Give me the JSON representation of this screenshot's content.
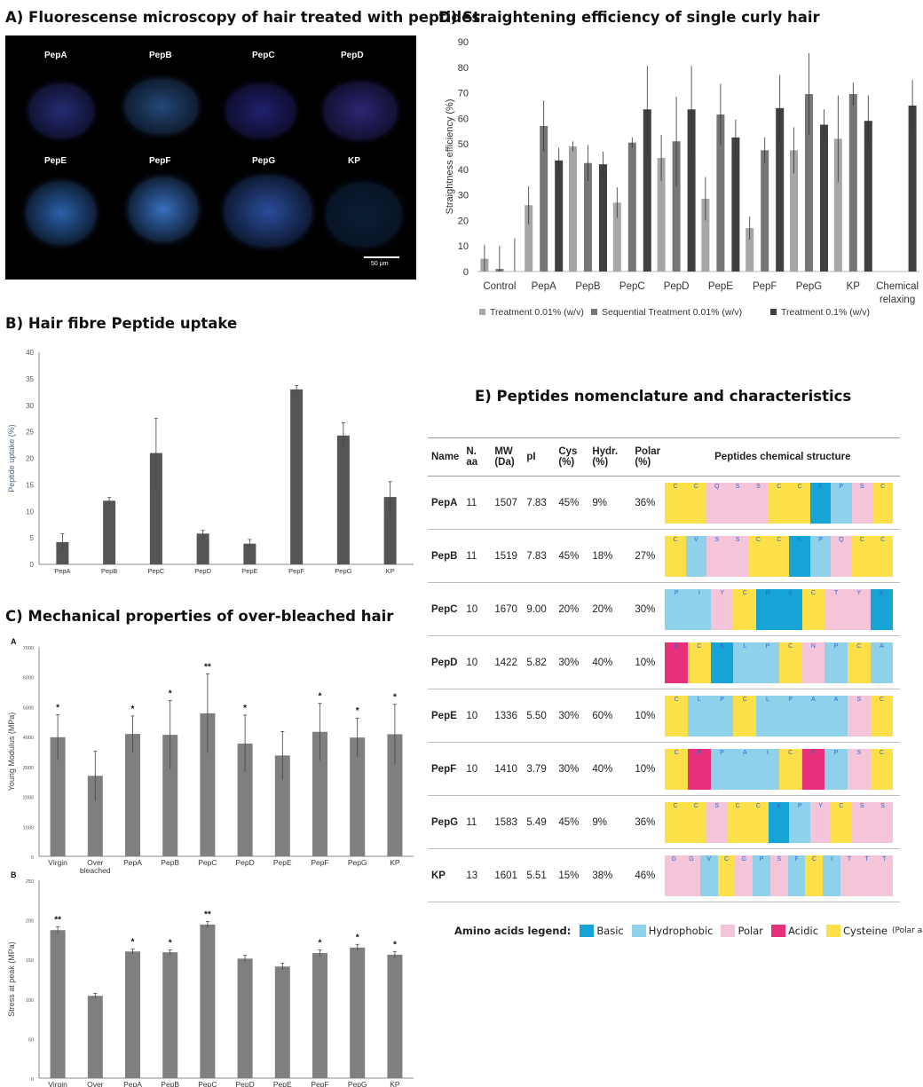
{
  "panelA": {
    "title": "A) Fluorescense microscopy of hair treated with peptides",
    "labels": [
      "PepA",
      "PepB",
      "PepC",
      "PepD",
      "PepE",
      "PepF",
      "PepG",
      "KP"
    ],
    "scale": "50 μm"
  },
  "panelB": {
    "title": "B) Hair fibre Peptide uptake",
    "chart_data": {
      "type": "bar",
      "categories": [
        "PepA",
        "PepB",
        "PepC",
        "PepD",
        "PepE",
        "PepF",
        "PepG",
        "KP"
      ],
      "values": [
        4.2,
        12.0,
        21.0,
        5.8,
        3.9,
        33.0,
        24.3,
        12.7
      ],
      "errors": [
        1.6,
        0.6,
        6.5,
        0.6,
        0.8,
        0.7,
        2.4,
        2.9
      ],
      "ylabel": "Peptide uptake (%)",
      "ylim": [
        0,
        40
      ],
      "yticks": [
        0,
        5,
        10,
        15,
        20,
        25,
        30,
        35,
        40
      ],
      "color": "#555555"
    }
  },
  "panelC": {
    "title": "C) Mechanical properties of over-bleached hair",
    "chart_data": [
      {
        "type": "bar",
        "letter": "A",
        "categories": [
          "Virgin",
          "Over bleached",
          "PepA",
          "PepB",
          "PepC",
          "PepD",
          "PepE",
          "PepF",
          "PepG",
          "KP"
        ],
        "values": [
          3980,
          2690,
          4090,
          4060,
          4780,
          3770,
          3370,
          4160,
          3970,
          4080
        ],
        "errors": [
          750,
          820,
          600,
          1150,
          1320,
          950,
          800,
          950,
          650,
          1000
        ],
        "stars": [
          "*",
          "",
          "*",
          "*",
          "**",
          "*",
          "",
          "*",
          "*",
          "*"
        ],
        "ylabel": "Young Modulus (MPa)",
        "ylim": [
          0,
          7000
        ],
        "yticks": [
          0,
          1000,
          2000,
          3000,
          4000,
          5000,
          6000,
          7000
        ],
        "color": "#7f7f7f"
      },
      {
        "type": "bar",
        "letter": "B",
        "categories": [
          "Virgin",
          "Over bleached",
          "PepA",
          "PepB",
          "PepC",
          "PepD",
          "PepE",
          "PepF",
          "PepG",
          "KP"
        ],
        "values": [
          187,
          104,
          160,
          159,
          194,
          151,
          141,
          158,
          165,
          156
        ],
        "errors": [
          4,
          3,
          3,
          3,
          4,
          4,
          4,
          4,
          4,
          4
        ],
        "stars": [
          "**",
          "",
          "*",
          "*",
          "**",
          "",
          "",
          "*",
          "*",
          "*"
        ],
        "ylabel": "Stress at peak (MPa)",
        "ylim": [
          0,
          250
        ],
        "yticks": [
          0,
          50,
          100,
          150,
          200,
          250
        ],
        "color": "#7f7f7f"
      }
    ]
  },
  "panelD": {
    "title": "D) Straightening efficiency of single curly hair",
    "chart_data": {
      "type": "bar",
      "categories": [
        "Control",
        "PepA",
        "PepB",
        "PepC",
        "PepD",
        "PepE",
        "PepF",
        "PepG",
        "KP",
        "Chemical relaxing"
      ],
      "series": [
        {
          "name": "Treatment 0.01% (w/v)",
          "color": "#a6a6a6",
          "values": [
            5,
            26,
            49,
            27,
            44.5,
            28.5,
            17,
            47.5,
            52,
            null
          ],
          "errors": [
            5.5,
            7.5,
            2,
            6,
            9,
            8.5,
            4.5,
            9,
            17,
            null
          ]
        },
        {
          "name": "Sequential Treatment 0.01% (w/v)",
          "color": "#767676",
          "values": [
            1,
            57,
            42.5,
            50.5,
            51,
            61.5,
            47.5,
            69.5,
            69.5,
            null
          ],
          "errors": [
            9,
            10,
            7,
            2,
            17.5,
            12,
            5,
            16,
            4.5,
            null
          ]
        },
        {
          "name": "Treatment 0.1% (w/v)",
          "color": "#404040",
          "values": [
            0,
            43.5,
            42,
            63.5,
            63.5,
            52.5,
            64,
            57.5,
            59,
            65
          ],
          "errors": [
            13,
            5,
            5,
            17,
            17,
            7,
            13,
            6,
            10,
            10
          ]
        }
      ],
      "ylabel": "Straightness efficiency (%)",
      "ylim": [
        0,
        90
      ],
      "yticks": [
        0,
        10,
        20,
        30,
        40,
        50,
        60,
        70,
        80,
        90
      ]
    }
  },
  "panelE": {
    "title": "E) Peptides nomenclature and characteristics",
    "headers": {
      "name": "Name",
      "naa": "N. aa",
      "mw": "MW (Da)",
      "pi": "pI",
      "cys": "Cys (%)",
      "hydr": "Hydr. (%)",
      "polar": "Polar (%)",
      "struct": "Peptides chemical structure"
    },
    "rows": [
      {
        "name": "PepA",
        "naa": "11",
        "mw": "1507",
        "pi": "7.83",
        "cys": "45%",
        "hydr": "9%",
        "polar": "36%",
        "seq": [
          "C",
          "C",
          "Q",
          "S",
          "S",
          "C",
          "C",
          "K",
          "P",
          "S",
          "C"
        ]
      },
      {
        "name": "PepB",
        "naa": "11",
        "mw": "1519",
        "pi": "7.83",
        "cys": "45%",
        "hydr": "18%",
        "polar": "27%",
        "seq": [
          "C",
          "V",
          "S",
          "S",
          "C",
          "C",
          "K",
          "P",
          "Q",
          "C",
          "C"
        ]
      },
      {
        "name": "PepC",
        "naa": "10",
        "mw": "1670",
        "pi": "9.00",
        "cys": "20%",
        "hydr": "20%",
        "polar": "30%",
        "seq": [
          "P",
          "I",
          "Y",
          "C",
          "R",
          "K",
          "C",
          "T",
          "Y",
          "K"
        ]
      },
      {
        "name": "PepD",
        "naa": "10",
        "mw": "1422",
        "pi": "5.82",
        "cys": "30%",
        "hydr": "40%",
        "polar": "10%",
        "seq": [
          "D",
          "C",
          "K",
          "L",
          "P",
          "C",
          "N",
          "P",
          "C",
          "A"
        ]
      },
      {
        "name": "PepE",
        "naa": "10",
        "mw": "1336",
        "pi": "5.50",
        "cys": "30%",
        "hydr": "60%",
        "polar": "10%",
        "seq": [
          "C",
          "L",
          "P",
          "C",
          "L",
          "P",
          "A",
          "A",
          "S",
          "C"
        ]
      },
      {
        "name": "PepF",
        "naa": "10",
        "mw": "1410",
        "pi": "3.79",
        "cys": "30%",
        "hydr": "40%",
        "polar": "10%",
        "seq": [
          "C",
          "E",
          "P",
          "A",
          "I",
          "C",
          "E",
          "P",
          "S",
          "C"
        ]
      },
      {
        "name": "PepG",
        "naa": "11",
        "mw": "1583",
        "pi": "5.49",
        "cys": "45%",
        "hydr": "9%",
        "polar": "36%",
        "seq": [
          "C",
          "C",
          "S",
          "C",
          "C",
          "K",
          "P",
          "Y",
          "C",
          "S",
          "S"
        ]
      },
      {
        "name": "KP",
        "naa": "13",
        "mw": "1601",
        "pi": "5.51",
        "cys": "15%",
        "hydr": "38%",
        "polar": "46%",
        "seq": [
          "G",
          "G",
          "V",
          "C",
          "G",
          "P",
          "S",
          "F",
          "C",
          "I",
          "T",
          "T",
          "T"
        ]
      }
    ],
    "legend": {
      "title": "Amino acids legend:",
      "items": [
        {
          "label": "Basic",
          "color": "#16a4d6"
        },
        {
          "label": "Hydrophobic",
          "color": "#8fd0ea"
        },
        {
          "label": "Polar",
          "color": "#f4c4d8"
        },
        {
          "label": "Acidic",
          "color": "#e8307a"
        },
        {
          "label": "Cysteine",
          "note": "(Polar aa)",
          "color": "#fbe049"
        }
      ]
    }
  }
}
